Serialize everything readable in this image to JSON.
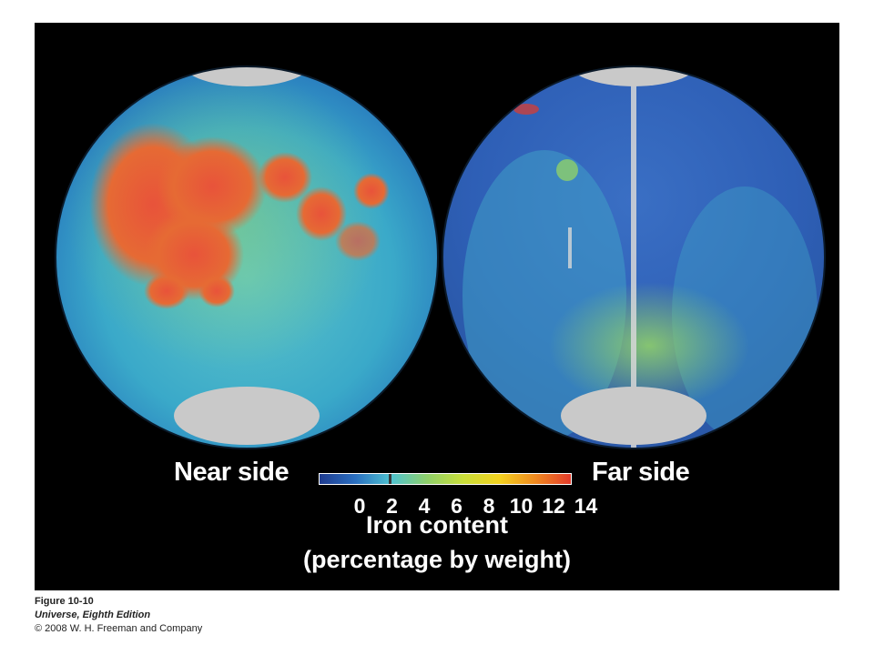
{
  "figure": {
    "near_label": "Near side",
    "far_label": "Far side",
    "scale": {
      "ticks": [
        "0",
        "2",
        "4",
        "6",
        "8",
        "10",
        "12",
        "14"
      ],
      "colors": [
        "#1f3b8f",
        "#2a6fc0",
        "#4fc3d0",
        "#8fd06a",
        "#c9de3a",
        "#f2d21f",
        "#f08a1f",
        "#e23a2a"
      ]
    },
    "caption_line1": "Iron content",
    "caption_line2": "(percentage by weight)"
  },
  "meta": {
    "figure_number": "Figure 10-10",
    "book": "Universe, Eighth Edition",
    "copyright": "© 2008 W. H. Freeman and Company"
  }
}
